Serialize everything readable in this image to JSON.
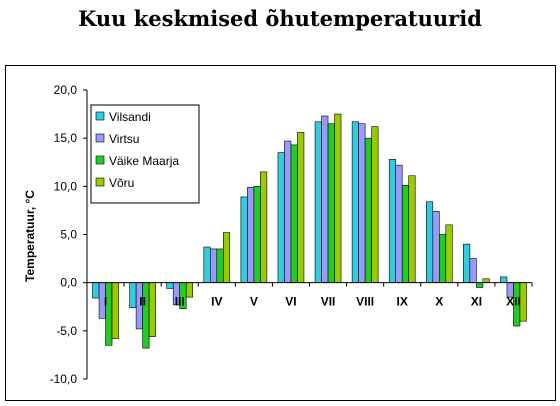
{
  "chart_data": {
    "type": "bar",
    "title": "Kuu keskmised õhutemperatuurid",
    "ylabel": "Temperatuur, °C",
    "xlabel": "",
    "categories": [
      "I",
      "II",
      "III",
      "IV",
      "V",
      "VI",
      "VII",
      "VIII",
      "IX",
      "X",
      "XI",
      "XII"
    ],
    "ylim": [
      -10,
      20
    ],
    "yticks": [
      "-10,0",
      "-5,0",
      "0,0",
      "5,0",
      "10,0",
      "15,0",
      "20,0"
    ],
    "ytick_values": [
      -10,
      -5,
      0,
      5,
      10,
      15,
      20
    ],
    "grid": false,
    "legend_position": "top-left",
    "series": [
      {
        "name": "Vilsandi",
        "color": "#33ccdd",
        "values": [
          -1.6,
          -2.6,
          -0.6,
          3.7,
          8.9,
          13.5,
          16.7,
          16.7,
          12.8,
          8.4,
          4.0,
          0.6
        ]
      },
      {
        "name": "Virtsu",
        "color": "#9999ff",
        "values": [
          -3.7,
          -4.8,
          -2.3,
          3.5,
          9.9,
          14.7,
          17.3,
          16.5,
          12.2,
          7.4,
          2.5,
          -1.5
        ]
      },
      {
        "name": "Väike Maarja",
        "color": "#22cc22",
        "values": [
          -6.5,
          -6.8,
          -2.7,
          3.5,
          10.0,
          14.3,
          16.5,
          15.0,
          10.1,
          5.0,
          -0.5,
          -4.5
        ]
      },
      {
        "name": "Võru",
        "color": "#99cc00",
        "values": [
          -5.8,
          -5.6,
          -1.5,
          5.2,
          11.5,
          15.6,
          17.5,
          16.2,
          11.1,
          6.0,
          0.4,
          -4.0
        ]
      }
    ]
  }
}
